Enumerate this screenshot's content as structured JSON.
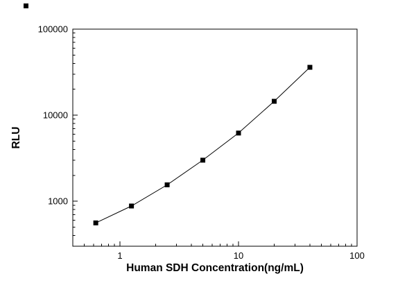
{
  "chart_data": {
    "type": "line",
    "title": "",
    "xlabel": "Human SDH Concentration(ng/mL)",
    "ylabel": "RLU",
    "x": [
      0.625,
      1.25,
      2.5,
      5,
      10,
      20,
      40
    ],
    "series": [
      {
        "name": "RLU",
        "values": [
          560,
          880,
          1550,
          3000,
          6200,
          14500,
          36000
        ]
      }
    ],
    "xscale": "log",
    "yscale": "log",
    "xlim": [
      0.4,
      100
    ],
    "ylim": [
      300,
      100000
    ],
    "x_major_ticks": [
      1,
      10,
      100
    ],
    "x_major_tick_labels": [
      "1",
      "10",
      "100"
    ],
    "y_major_ticks": [
      1000,
      10000,
      100000
    ],
    "y_major_tick_labels": [
      "1000",
      "10000",
      "100000"
    ],
    "grid": "off",
    "legend": "none",
    "marker": "filled-square",
    "marker_color": "#000000",
    "line_color": "#000000",
    "axis_color": "#000000",
    "background": "#ffffff"
  },
  "icons": {
    "stray_marker": "black-square-icon"
  }
}
